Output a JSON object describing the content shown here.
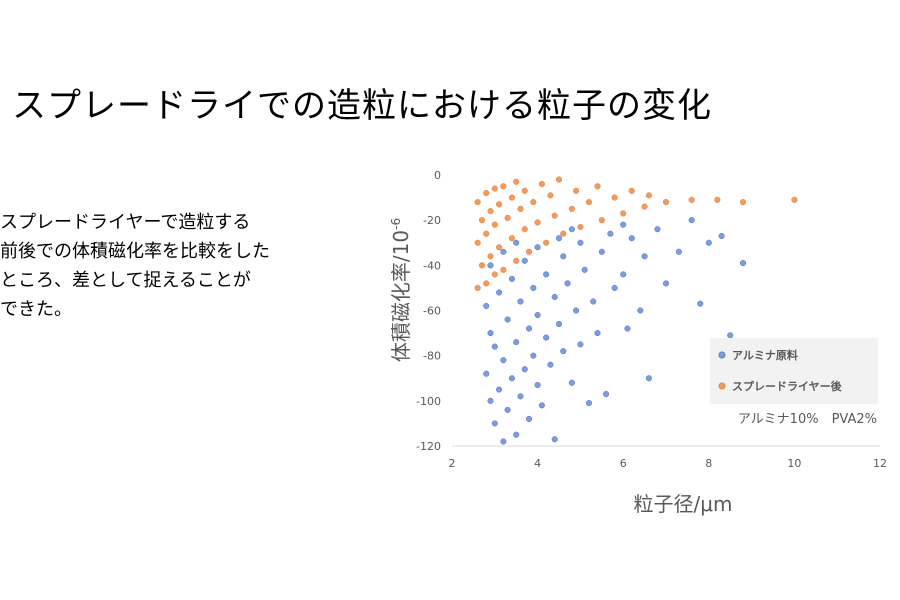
{
  "slide": {
    "title": "スプレードライでの造粒における粒子の変化",
    "body_lines": [
      "スプレードライヤーで造粒する",
      "前後での体積磁化率を比較をした",
      "ところ、差として捉えることが",
      "できた。"
    ]
  },
  "chart_data": {
    "type": "scatter",
    "xlabel": "粒子径/μm",
    "ylabel": "体積磁化率/10",
    "ylabel_superscript": "-6",
    "xlim": [
      2,
      12
    ],
    "ylim": [
      -120,
      0
    ],
    "xticks": [
      "2",
      "4",
      "6",
      "8",
      "10",
      "12"
    ],
    "yticks": [
      "0",
      "-20",
      "-40",
      "-60",
      "-80",
      "-100",
      "-120"
    ],
    "grid": false,
    "legend_position": "bottom-right",
    "annotation": "アルミナ10%　PVA2%",
    "series": [
      {
        "name": "アルミナ原料",
        "color": "#7b9cde",
        "points": [
          [
            3.2,
            -118
          ],
          [
            3.5,
            -115
          ],
          [
            4.4,
            -117
          ],
          [
            3.0,
            -110
          ],
          [
            3.8,
            -108
          ],
          [
            3.3,
            -104
          ],
          [
            2.9,
            -100
          ],
          [
            4.1,
            -102
          ],
          [
            3.6,
            -98
          ],
          [
            5.2,
            -101
          ],
          [
            3.1,
            -95
          ],
          [
            4.0,
            -93
          ],
          [
            3.4,
            -90
          ],
          [
            4.8,
            -92
          ],
          [
            2.8,
            -88
          ],
          [
            3.7,
            -86
          ],
          [
            4.3,
            -84
          ],
          [
            5.6,
            -97
          ],
          [
            3.2,
            -82
          ],
          [
            3.9,
            -80
          ],
          [
            4.6,
            -78
          ],
          [
            6.6,
            -90
          ],
          [
            3.0,
            -76
          ],
          [
            3.5,
            -74
          ],
          [
            4.2,
            -72
          ],
          [
            5.0,
            -75
          ],
          [
            2.9,
            -70
          ],
          [
            3.8,
            -68
          ],
          [
            4.5,
            -66
          ],
          [
            5.4,
            -70
          ],
          [
            3.3,
            -64
          ],
          [
            4.0,
            -62
          ],
          [
            4.9,
            -60
          ],
          [
            6.1,
            -68
          ],
          [
            2.8,
            -58
          ],
          [
            3.6,
            -56
          ],
          [
            4.4,
            -54
          ],
          [
            5.3,
            -56
          ],
          [
            6.4,
            -60
          ],
          [
            3.1,
            -52
          ],
          [
            3.9,
            -50
          ],
          [
            4.7,
            -48
          ],
          [
            5.8,
            -50
          ],
          [
            7.8,
            -57
          ],
          [
            3.4,
            -46
          ],
          [
            4.2,
            -44
          ],
          [
            5.1,
            -42
          ],
          [
            6.0,
            -44
          ],
          [
            7.0,
            -48
          ],
          [
            8.5,
            -71
          ],
          [
            2.9,
            -40
          ],
          [
            3.7,
            -38
          ],
          [
            4.6,
            -36
          ],
          [
            5.5,
            -34
          ],
          [
            6.5,
            -36
          ],
          [
            8.8,
            -39
          ],
          [
            3.2,
            -34
          ],
          [
            4.0,
            -32
          ],
          [
            5.0,
            -30
          ],
          [
            6.2,
            -28
          ],
          [
            7.3,
            -34
          ],
          [
            4.5,
            -28
          ],
          [
            5.7,
            -26
          ],
          [
            6.8,
            -24
          ],
          [
            8.0,
            -30
          ],
          [
            3.5,
            -30
          ],
          [
            4.8,
            -24
          ],
          [
            6.0,
            -22
          ],
          [
            7.6,
            -20
          ],
          [
            8.3,
            -27
          ]
        ]
      },
      {
        "name": "スプレードライヤー後",
        "color": "#f59a5a",
        "points": [
          [
            2.6,
            -50
          ],
          [
            2.8,
            -48
          ],
          [
            3.0,
            -44
          ],
          [
            3.2,
            -42
          ],
          [
            2.7,
            -40
          ],
          [
            3.5,
            -38
          ],
          [
            2.9,
            -36
          ],
          [
            3.8,
            -34
          ],
          [
            3.1,
            -32
          ],
          [
            4.2,
            -30
          ],
          [
            2.6,
            -30
          ],
          [
            3.4,
            -28
          ],
          [
            4.6,
            -26
          ],
          [
            2.8,
            -26
          ],
          [
            3.7,
            -24
          ],
          [
            5.0,
            -23
          ],
          [
            3.0,
            -22
          ],
          [
            4.0,
            -21
          ],
          [
            5.5,
            -20
          ],
          [
            2.7,
            -20
          ],
          [
            3.3,
            -19
          ],
          [
            4.4,
            -18
          ],
          [
            6.0,
            -17
          ],
          [
            2.9,
            -16
          ],
          [
            3.6,
            -15
          ],
          [
            4.8,
            -15
          ],
          [
            6.5,
            -14
          ],
          [
            3.1,
            -13
          ],
          [
            3.9,
            -12
          ],
          [
            5.2,
            -12
          ],
          [
            7.0,
            -12
          ],
          [
            2.6,
            -12
          ],
          [
            3.4,
            -10
          ],
          [
            4.3,
            -9
          ],
          [
            5.8,
            -10
          ],
          [
            7.6,
            -11
          ],
          [
            2.8,
            -8
          ],
          [
            3.7,
            -7
          ],
          [
            4.9,
            -7
          ],
          [
            6.6,
            -9
          ],
          [
            8.2,
            -11
          ],
          [
            3.2,
            -5
          ],
          [
            4.1,
            -4
          ],
          [
            5.4,
            -5
          ],
          [
            8.8,
            -12
          ],
          [
            10.0,
            -11
          ],
          [
            3.5,
            -3
          ],
          [
            4.5,
            -2
          ],
          [
            3.0,
            -6
          ],
          [
            6.2,
            -7
          ]
        ]
      }
    ]
  }
}
